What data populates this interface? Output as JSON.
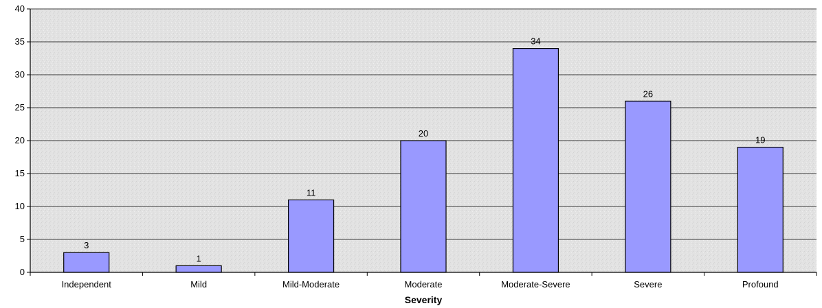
{
  "chart_data": {
    "type": "bar",
    "title": "",
    "xlabel": "Severity",
    "ylabel": "",
    "categories": [
      "Independent",
      "Mild",
      "Mild-Moderate",
      "Moderate",
      "Moderate-Severe",
      "Severe",
      "Profound"
    ],
    "values": [
      3,
      1,
      11,
      20,
      34,
      26,
      19
    ],
    "ylim": [
      0,
      40
    ],
    "yticks": [
      "0",
      "5",
      "10",
      "15",
      "20",
      "25",
      "30",
      "35",
      "40"
    ],
    "grid": true,
    "legend": "none",
    "colors": {
      "bar_fill": "#9999ff",
      "bar_stroke": "#000000",
      "plot_background": "#e3e3e3",
      "gridline": "#000000"
    }
  }
}
